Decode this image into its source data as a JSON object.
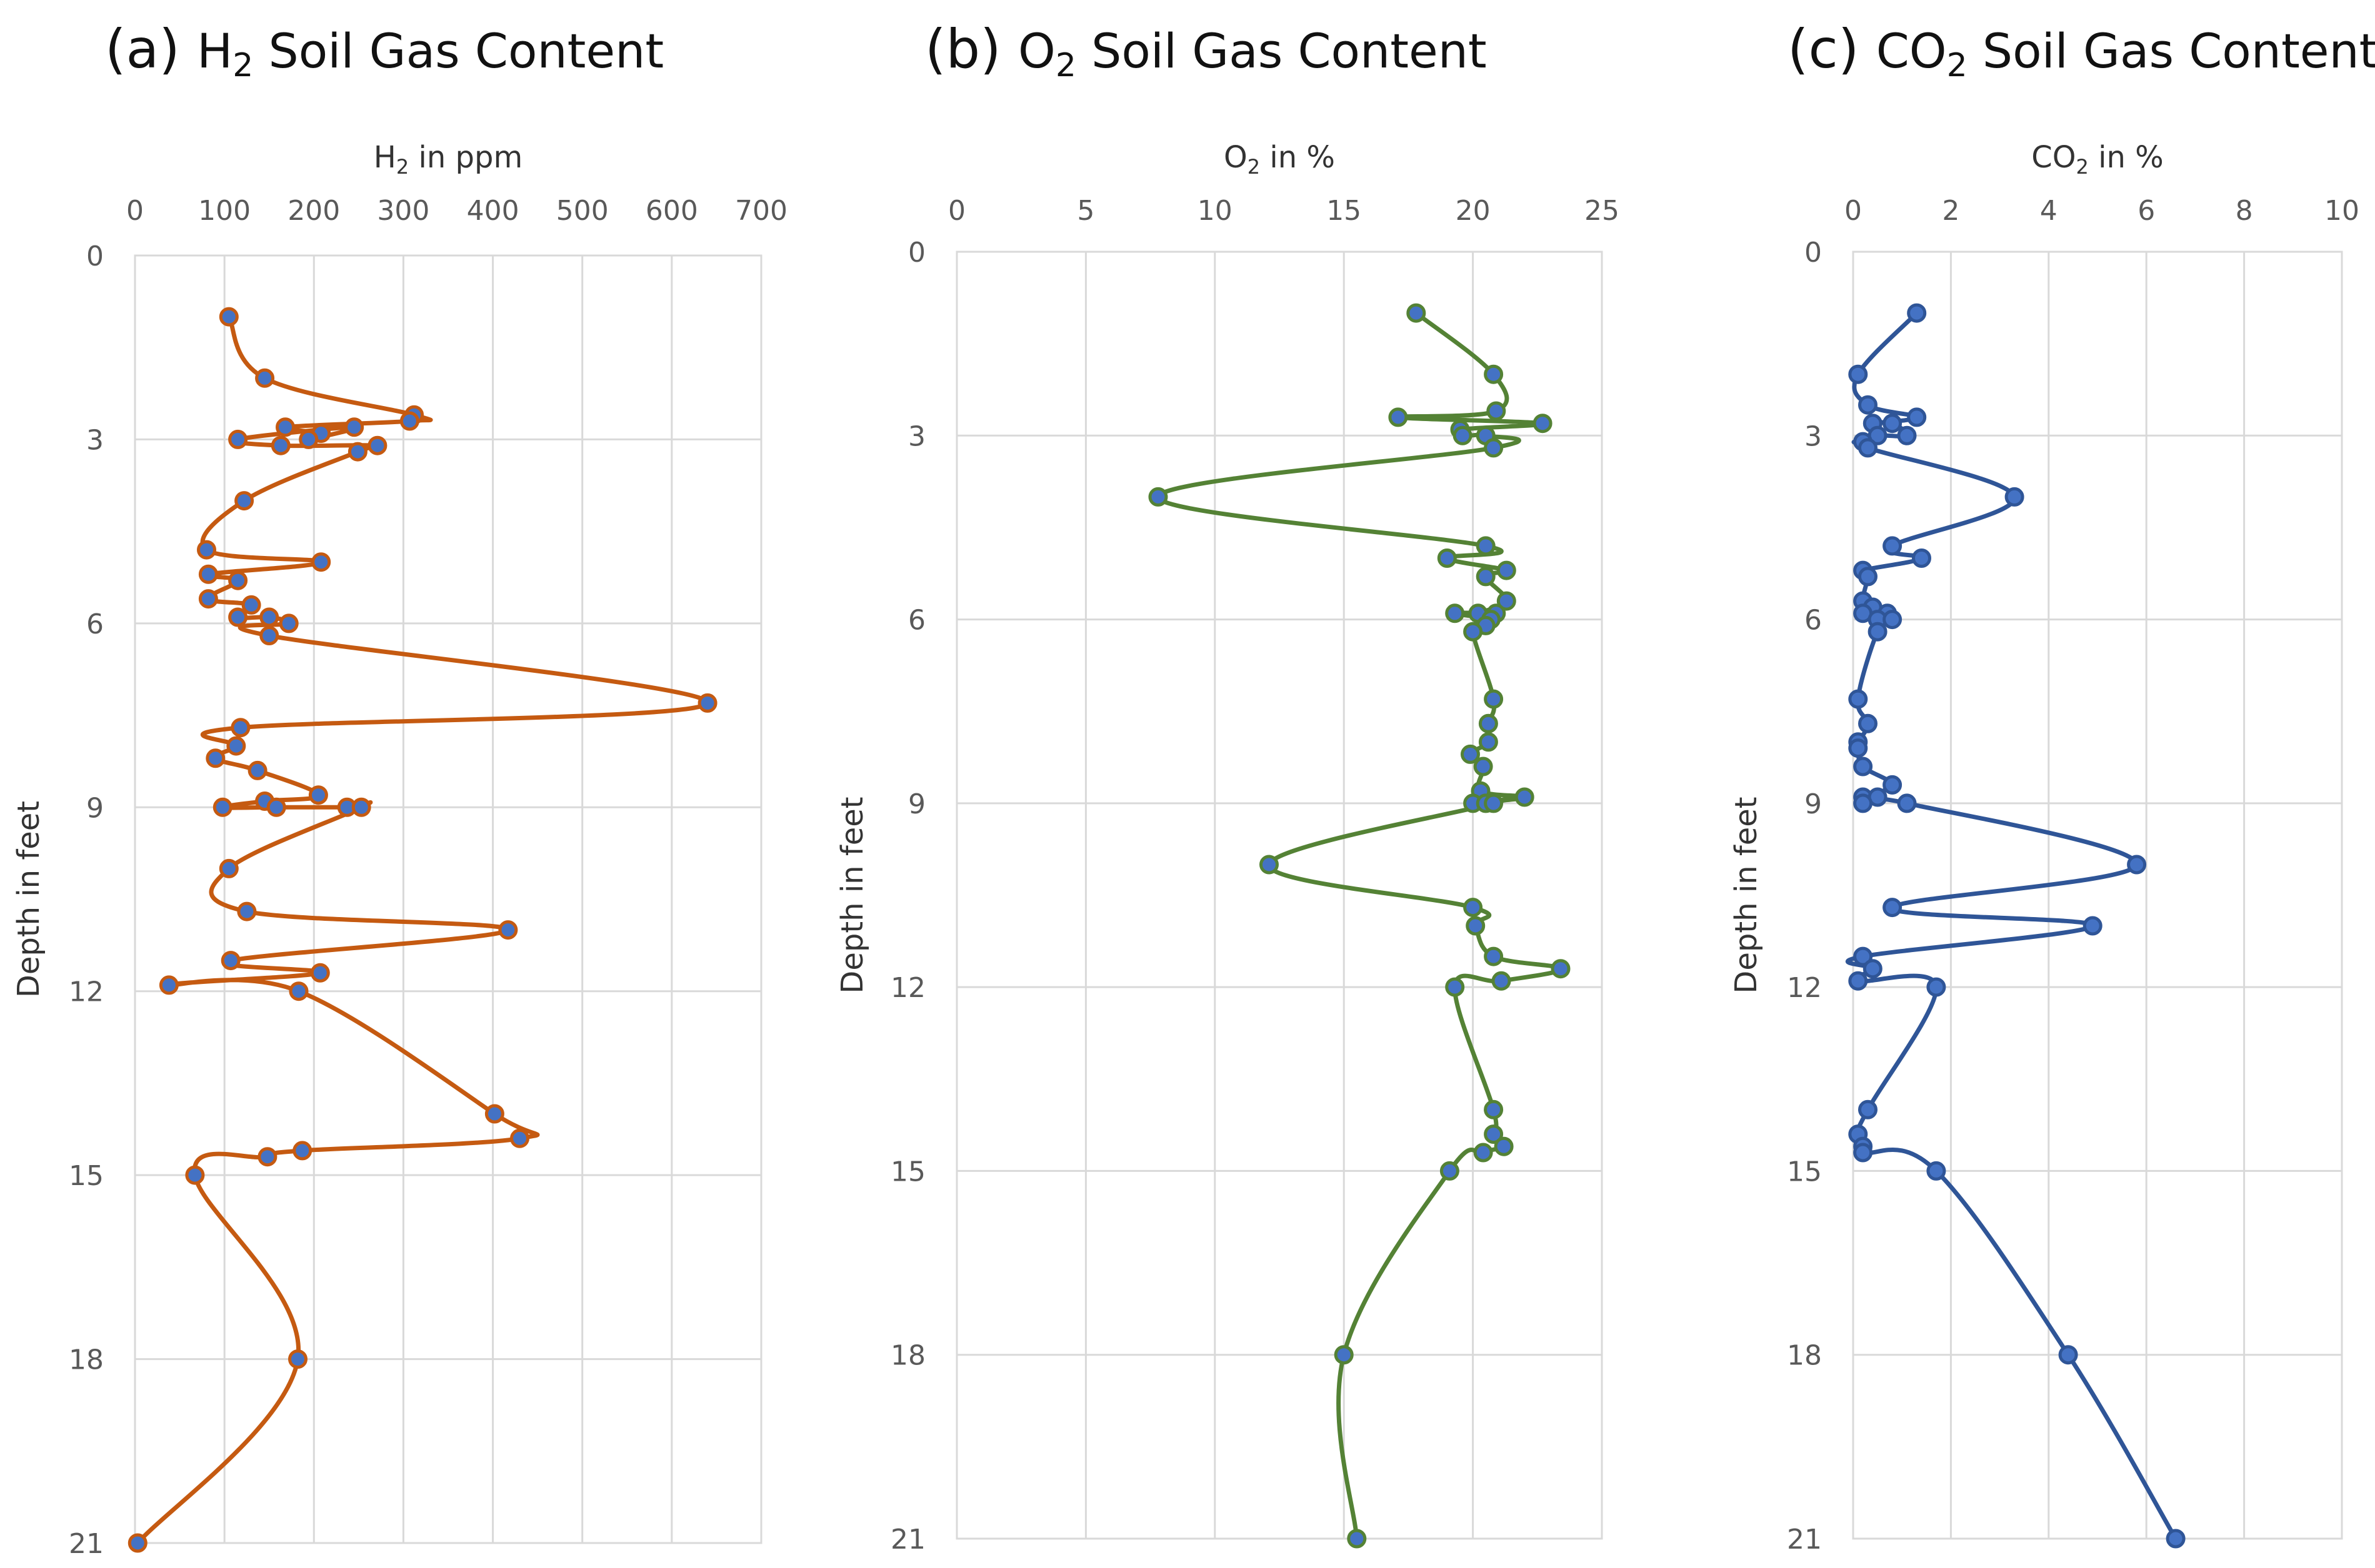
{
  "chart_data": [
    {
      "type": "line",
      "panel_letter": "(a)",
      "title_prefix": "H",
      "title_sub": "2",
      "title_suffix": " Soil Gas Content",
      "xlabel_prefix": "H",
      "xlabel_sub": "2",
      "xlabel_suffix": " in ppm",
      "ylabel": "Depth in feet",
      "xlim": [
        0,
        700
      ],
      "xticks": [
        0,
        100,
        200,
        300,
        400,
        500,
        600,
        700
      ],
      "ylim": [
        0,
        21
      ],
      "yticks": [
        0,
        3,
        6,
        9,
        12,
        15,
        18,
        21
      ],
      "line_color": "#c55a11",
      "marker_fill": "#4472c4",
      "marker_stroke": "#c55a11",
      "series": [
        {
          "name": "H2",
          "x": [
            105,
            145,
            312,
            307,
            168,
            208,
            194,
            245,
            115,
            163,
            271,
            249,
            122,
            80,
            208,
            82,
            115,
            82,
            130,
            115,
            150,
            172,
            150,
            640,
            118,
            113,
            90,
            137,
            205,
            145,
            98,
            158,
            237,
            253,
            105,
            125,
            417,
            107,
            207,
            38,
            183,
            402,
            430,
            187,
            148,
            67,
            182,
            3
          ],
          "y": [
            1.0,
            2.0,
            2.6,
            2.7,
            2.8,
            2.9,
            3.0,
            2.8,
            3.0,
            3.1,
            3.1,
            3.2,
            4.0,
            4.8,
            5.0,
            5.2,
            5.3,
            5.6,
            5.7,
            5.9,
            5.9,
            6.0,
            6.2,
            7.3,
            7.7,
            8.0,
            8.2,
            8.4,
            8.8,
            8.9,
            9.0,
            9.0,
            9.0,
            9.0,
            10.0,
            10.7,
            11.0,
            11.5,
            11.7,
            11.9,
            12.0,
            14.0,
            14.4,
            14.6,
            14.7,
            15.0,
            18.0,
            21.0
          ]
        }
      ]
    },
    {
      "type": "line",
      "panel_letter": "(b)",
      "title_prefix": "O",
      "title_sub": "2",
      "title_suffix": " Soil Gas Content",
      "xlabel_prefix": "O",
      "xlabel_sub": "2",
      "xlabel_suffix": " in %",
      "ylabel": "Depth in feet",
      "xlim": [
        0,
        25
      ],
      "xticks": [
        0,
        5,
        10,
        15,
        20,
        25
      ],
      "ylim": [
        0,
        21
      ],
      "yticks": [
        0,
        3,
        6,
        9,
        12,
        15,
        18,
        21
      ],
      "line_color": "#548235",
      "marker_fill": "#4472c4",
      "marker_stroke": "#548235",
      "series": [
        {
          "name": "O2",
          "x": [
            17.8,
            20.8,
            20.9,
            17.1,
            22.7,
            19.5,
            19.6,
            20.5,
            20.8,
            7.8,
            20.5,
            19.0,
            21.3,
            20.5,
            21.3,
            20.2,
            20.9,
            19.3,
            20.7,
            20.5,
            20.0,
            20.8,
            20.6,
            20.6,
            19.9,
            20.4,
            20.3,
            22.0,
            20.0,
            20.5,
            20.8,
            12.1,
            20.0,
            20.1,
            20.8,
            23.4,
            21.1,
            19.3,
            20.8,
            20.8,
            21.2,
            20.4,
            19.1,
            15.0,
            15.5
          ],
          "y": [
            1.0,
            2.0,
            2.6,
            2.7,
            2.8,
            2.9,
            3.0,
            3.0,
            3.2,
            4.0,
            4.8,
            5.0,
            5.2,
            5.3,
            5.7,
            5.9,
            5.9,
            5.9,
            6.0,
            6.1,
            6.2,
            7.3,
            7.7,
            8.0,
            8.2,
            8.4,
            8.8,
            8.9,
            9.0,
            9.0,
            9.0,
            10.0,
            10.7,
            11.0,
            11.5,
            11.7,
            11.9,
            12.0,
            14.0,
            14.4,
            14.6,
            14.7,
            15.0,
            18.0,
            21.0
          ]
        }
      ]
    },
    {
      "type": "line",
      "panel_letter": "(c)",
      "title_prefix": "CO",
      "title_sub": "2",
      "title_suffix": " Soil Gas Content",
      "xlabel_prefix": "CO",
      "xlabel_sub": "2",
      "xlabel_suffix": " in %",
      "ylabel": "Depth in feet",
      "xlim": [
        0,
        10
      ],
      "xticks": [
        0,
        2,
        4,
        6,
        8,
        10
      ],
      "ylim": [
        0,
        21
      ],
      "yticks": [
        0,
        3,
        6,
        9,
        12,
        15,
        18,
        21
      ],
      "line_color": "#2f5597",
      "marker_fill": "#4472c4",
      "marker_stroke": "#2f5597",
      "series": [
        {
          "name": "CO2",
          "x": [
            1.3,
            0.1,
            0.3,
            1.3,
            0.4,
            0.8,
            1.1,
            0.5,
            0.2,
            0.3,
            3.3,
            0.8,
            1.4,
            0.2,
            0.3,
            0.2,
            0.4,
            0.7,
            0.2,
            0.5,
            0.8,
            0.5,
            0.1,
            0.3,
            0.1,
            0.1,
            0.2,
            0.8,
            0.2,
            0.5,
            0.2,
            1.1,
            5.8,
            0.8,
            4.9,
            0.2,
            0.4,
            0.1,
            1.7,
            0.3,
            0.1,
            0.2,
            0.2,
            1.7,
            4.4,
            6.6
          ],
          "y": [
            1.0,
            2.0,
            2.5,
            2.7,
            2.8,
            2.8,
            3.0,
            3.0,
            3.1,
            3.2,
            4.0,
            4.8,
            5.0,
            5.2,
            5.3,
            5.7,
            5.8,
            5.9,
            5.9,
            6.0,
            6.0,
            6.2,
            7.3,
            7.7,
            8.0,
            8.1,
            8.4,
            8.7,
            8.9,
            8.9,
            9.0,
            9.0,
            10.0,
            10.7,
            11.0,
            11.5,
            11.7,
            11.9,
            12.0,
            14.0,
            14.4,
            14.6,
            14.7,
            15.0,
            18.0,
            21.0
          ]
        }
      ]
    }
  ]
}
